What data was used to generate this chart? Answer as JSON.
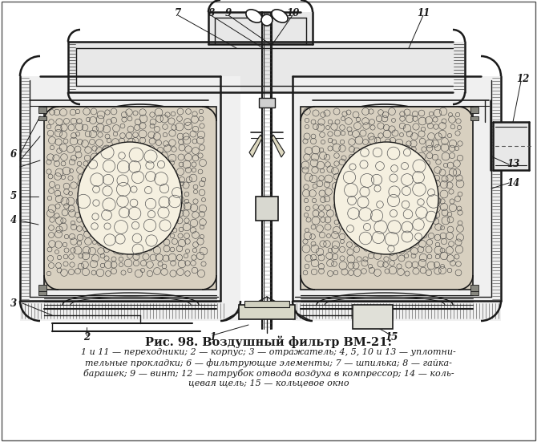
{
  "title": "Рис. 98. Воздушный фильтр ВМ-21:",
  "caption_line1": "1 и 11 — переходники; 2 — корпус; 3 — отражатель; 4, 5, 10 и 13 — уплотни-",
  "caption_line2": "тельные прокладки; 6 — фильтрующие элементы; 7 — шпилька; 8 — гайка-",
  "caption_line3": "барашек; 9 — винт; 12 — патрубок отвода воздуха в компрессор; 14 — коль-",
  "caption_line4": "цевая щель; 15 — кольцевое окно",
  "bg_color": "#ffffff",
  "line_color": "#1a1a1a",
  "fig_width": 6.7,
  "fig_height": 5.51,
  "dpi": 100
}
